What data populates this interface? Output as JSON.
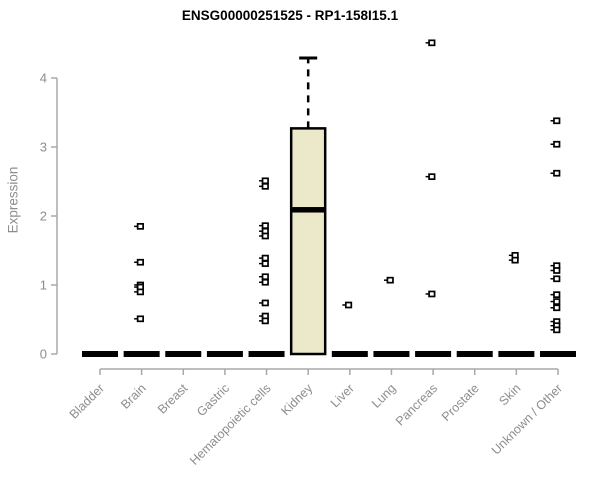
{
  "chart_data": {
    "type": "boxplot",
    "title": "ENSG00000251525 - RP1-158I15.1",
    "ylabel": "Expression",
    "ylim": [
      0,
      4.6
    ],
    "yaxis_range_shown": [
      0,
      4
    ],
    "yticks": [
      0,
      1,
      2,
      3,
      4
    ],
    "grid": false,
    "legend": "none",
    "categories": [
      "Bladder",
      "Brain",
      "Breast",
      "Gastric",
      "Hematopoietic cells",
      "Kidney",
      "Liver",
      "Lung",
      "Pancreas",
      "Prostate",
      "Skin",
      "Unknown / Other"
    ],
    "boxes": [
      {
        "category": "Bladder",
        "median": 0,
        "q1": 0,
        "q3": 0,
        "whisker_low": 0,
        "whisker_high": 0,
        "outliers": []
      },
      {
        "category": "Brain",
        "median": 0,
        "q1": 0,
        "q3": 0,
        "whisker_low": 0,
        "whisker_high": 0,
        "outliers": [
          1.85,
          1.33,
          1.0,
          0.97,
          0.9,
          0.51
        ]
      },
      {
        "category": "Breast",
        "median": 0,
        "q1": 0,
        "q3": 0,
        "whisker_low": 0,
        "whisker_high": 0,
        "outliers": []
      },
      {
        "category": "Gastric",
        "median": 0,
        "q1": 0,
        "q3": 0,
        "whisker_low": 0,
        "whisker_high": 0,
        "outliers": []
      },
      {
        "category": "Hematopoietic cells",
        "median": 0,
        "q1": 0,
        "q3": 0,
        "whisker_low": 0,
        "whisker_high": 0,
        "outliers": [
          2.51,
          2.43,
          1.86,
          1.78,
          1.71,
          1.39,
          1.31,
          1.12,
          1.04,
          0.74,
          0.55,
          0.48
        ]
      },
      {
        "category": "Kidney",
        "median": 2.09,
        "q1": 0,
        "q3": 3.27,
        "whisker_low": 0,
        "whisker_high": 4.29,
        "outliers": []
      },
      {
        "category": "Liver",
        "median": 0,
        "q1": 0,
        "q3": 0,
        "whisker_low": 0,
        "whisker_high": 0,
        "outliers": [
          0.71
        ]
      },
      {
        "category": "Lung",
        "median": 0,
        "q1": 0,
        "q3": 0,
        "whisker_low": 0,
        "whisker_high": 0,
        "outliers": [
          1.07
        ]
      },
      {
        "category": "Pancreas",
        "median": 0,
        "q1": 0,
        "q3": 0,
        "whisker_low": 0,
        "whisker_high": 0,
        "outliers": [
          4.51,
          2.57,
          0.87
        ]
      },
      {
        "category": "Prostate",
        "median": 0,
        "q1": 0,
        "q3": 0,
        "whisker_low": 0,
        "whisker_high": 0,
        "outliers": []
      },
      {
        "category": "Skin",
        "median": 0,
        "q1": 0,
        "q3": 0,
        "whisker_low": 0,
        "whisker_high": 0,
        "outliers": [
          1.43,
          1.36
        ]
      },
      {
        "category": "Unknown / Other",
        "median": 0,
        "q1": 0,
        "q3": 0,
        "whisker_low": 0,
        "whisker_high": 0,
        "outliers": [
          3.38,
          3.04,
          2.62,
          1.28,
          1.21,
          1.09,
          0.86,
          0.76,
          0.67,
          0.47,
          0.41,
          0.35
        ]
      }
    ],
    "colors": {
      "box_fill": "#ece9cb",
      "box_stroke": "#000000",
      "median": "#000000",
      "outlier": "#000000",
      "axis": "#a8a8a8",
      "text": "#8d8d8d",
      "title": "#000000"
    }
  }
}
